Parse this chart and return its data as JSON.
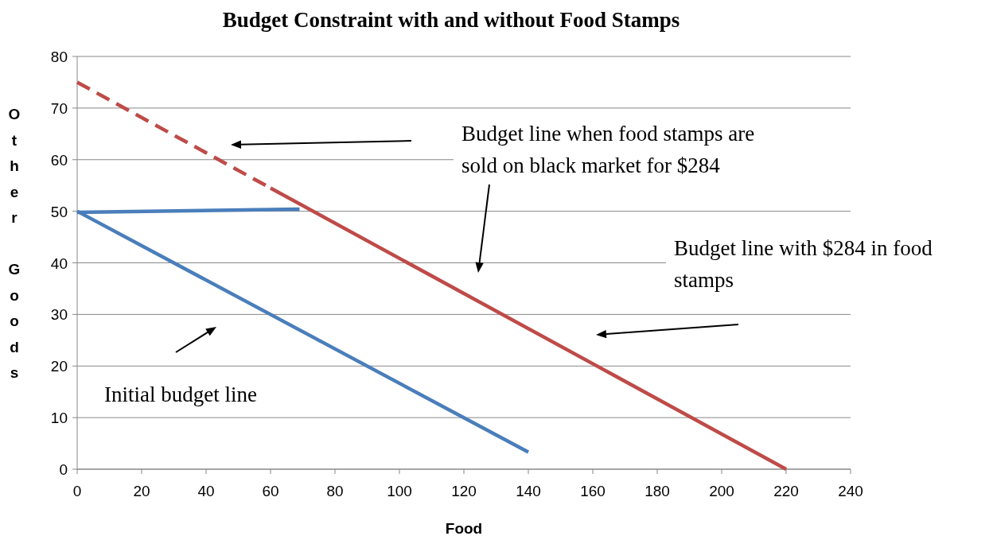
{
  "chart_data": {
    "type": "line",
    "title": "Budget Constraint with and without Food Stamps",
    "xlabel": "Food",
    "ylabel": "Other Goods",
    "xlim": [
      0,
      240
    ],
    "xticks": [
      0,
      20,
      40,
      60,
      80,
      100,
      120,
      140,
      160,
      180,
      200,
      220,
      240
    ],
    "ylim": [
      0,
      80
    ],
    "yticks": [
      0,
      10,
      20,
      30,
      40,
      50,
      60,
      70,
      80
    ],
    "grid": "y",
    "marker": "none",
    "series": [
      {
        "color": "#4a7ebb",
        "x": [
          0,
          140
        ],
        "values": [
          50,
          3.3
        ]
      },
      {
        "color": "#4a7ebb",
        "x": [
          0,
          69
        ],
        "values": [
          49.8,
          50.4
        ]
      },
      {
        "color": "#be4b48",
        "x": [
          60,
          220
        ],
        "values": [
          54.5,
          0
        ]
      },
      {
        "color": "#be4b48",
        "x": [
          0,
          60
        ],
        "values": [
          75,
          54.5
        ],
        "line_style": "dashed"
      }
    ],
    "annotations": [
      "Budget line when food stamps are sold on black market for $284",
      "Budget line with $284 in food stamps",
      "Initial budget line"
    ]
  }
}
